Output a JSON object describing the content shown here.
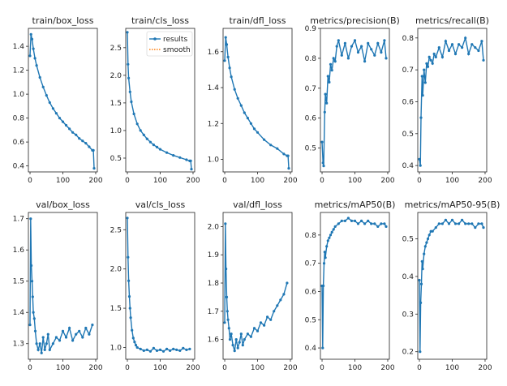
{
  "colors": {
    "results": "#1f77b4",
    "smooth": "#ff7f0e"
  },
  "legend": {
    "results_label": "results",
    "smooth_label": "smooth"
  },
  "chart_data": [
    {
      "type": "line",
      "title": "train/box_loss",
      "xlim": [
        -5,
        205
      ],
      "ylim": [
        0.35,
        1.55
      ],
      "xticks": [
        0,
        100,
        200
      ],
      "yticks": [
        0.4,
        0.6,
        0.8,
        1.0,
        1.2,
        1.4
      ],
      "yticklabels": [
        "0.4",
        "0.6",
        "0.8",
        "1.0",
        "1.2",
        "1.4"
      ],
      "series": [
        {
          "name": "results",
          "x": [
            0,
            3,
            6,
            10,
            15,
            20,
            30,
            40,
            50,
            60,
            70,
            80,
            90,
            100,
            110,
            120,
            130,
            140,
            150,
            160,
            170,
            180,
            190,
            193,
            195
          ],
          "y": [
            1.32,
            1.5,
            1.46,
            1.38,
            1.3,
            1.24,
            1.14,
            1.06,
            0.99,
            0.93,
            0.88,
            0.84,
            0.8,
            0.77,
            0.74,
            0.71,
            0.68,
            0.66,
            0.63,
            0.61,
            0.59,
            0.56,
            0.53,
            0.53,
            0.38
          ]
        }
      ]
    },
    {
      "type": "line",
      "title": "train/cls_loss",
      "xlim": [
        -5,
        205
      ],
      "ylim": [
        0.25,
        2.85
      ],
      "xticks": [
        0,
        100,
        200
      ],
      "yticks": [
        0.5,
        1.0,
        1.5,
        2.0,
        2.5
      ],
      "yticklabels": [
        "0.5",
        "1.0",
        "1.5",
        "2.0",
        "2.5"
      ],
      "series": [
        {
          "name": "results",
          "x": [
            0,
            2,
            4,
            8,
            12,
            20,
            30,
            40,
            50,
            60,
            70,
            80,
            90,
            100,
            120,
            140,
            160,
            180,
            190,
            193,
            195
          ],
          "y": [
            2.78,
            2.2,
            1.95,
            1.7,
            1.52,
            1.3,
            1.12,
            1.0,
            0.92,
            0.85,
            0.79,
            0.74,
            0.7,
            0.66,
            0.6,
            0.55,
            0.51,
            0.47,
            0.45,
            0.45,
            0.3
          ]
        }
      ]
    },
    {
      "type": "line",
      "title": "train/dfl_loss",
      "xlim": [
        -5,
        205
      ],
      "ylim": [
        0.93,
        1.73
      ],
      "xticks": [
        0,
        100,
        200
      ],
      "yticks": [
        1.0,
        1.2,
        1.4,
        1.6
      ],
      "yticklabels": [
        "1.0",
        "1.2",
        "1.4",
        "1.6"
      ],
      "series": [
        {
          "name": "results",
          "x": [
            0,
            3,
            6,
            10,
            15,
            20,
            30,
            40,
            50,
            60,
            70,
            80,
            90,
            100,
            120,
            140,
            160,
            180,
            190,
            193,
            195
          ],
          "y": [
            1.55,
            1.68,
            1.64,
            1.57,
            1.51,
            1.46,
            1.39,
            1.34,
            1.3,
            1.26,
            1.23,
            1.2,
            1.17,
            1.15,
            1.11,
            1.08,
            1.06,
            1.03,
            1.02,
            1.02,
            0.95
          ]
        }
      ]
    },
    {
      "type": "line",
      "title": "metrics/precision(B)",
      "xlim": [
        -5,
        205
      ],
      "ylim": [
        0.42,
        0.9
      ],
      "xticks": [
        0,
        100,
        200
      ],
      "yticks": [
        0.5,
        0.6,
        0.7,
        0.8,
        0.9
      ],
      "yticklabels": [
        "0.5",
        "0.6",
        "0.7",
        "0.8",
        "0.9"
      ],
      "series": [
        {
          "name": "results",
          "x": [
            0,
            3,
            5,
            8,
            10,
            14,
            18,
            22,
            26,
            30,
            35,
            40,
            45,
            50,
            60,
            70,
            80,
            90,
            100,
            110,
            120,
            130,
            140,
            150,
            160,
            170,
            180,
            190,
            195
          ],
          "y": [
            0.52,
            0.45,
            0.44,
            0.62,
            0.68,
            0.65,
            0.74,
            0.72,
            0.78,
            0.76,
            0.8,
            0.79,
            0.84,
            0.86,
            0.81,
            0.85,
            0.8,
            0.84,
            0.86,
            0.82,
            0.84,
            0.79,
            0.85,
            0.83,
            0.81,
            0.85,
            0.82,
            0.86,
            0.8
          ]
        }
      ]
    },
    {
      "type": "line",
      "title": "metrics/recall(B)",
      "xlim": [
        -5,
        205
      ],
      "ylim": [
        0.38,
        0.83
      ],
      "xticks": [
        0,
        100,
        200
      ],
      "yticks": [
        0.4,
        0.5,
        0.6,
        0.7,
        0.8
      ],
      "yticklabels": [
        "0.4",
        "0.5",
        "0.6",
        "0.7",
        "0.8"
      ],
      "series": [
        {
          "name": "results",
          "x": [
            0,
            3,
            5,
            8,
            10,
            14,
            18,
            22,
            26,
            30,
            35,
            40,
            45,
            50,
            60,
            70,
            80,
            90,
            100,
            110,
            120,
            130,
            140,
            150,
            160,
            170,
            180,
            190,
            195
          ],
          "y": [
            0.42,
            0.4,
            0.55,
            0.68,
            0.62,
            0.7,
            0.66,
            0.72,
            0.71,
            0.74,
            0.73,
            0.72,
            0.75,
            0.74,
            0.77,
            0.74,
            0.79,
            0.76,
            0.78,
            0.75,
            0.78,
            0.77,
            0.8,
            0.75,
            0.78,
            0.77,
            0.76,
            0.79,
            0.73
          ]
        }
      ]
    },
    {
      "type": "line",
      "title": "val/box_loss",
      "xlim": [
        -5,
        205
      ],
      "ylim": [
        1.25,
        1.72
      ],
      "xticks": [
        0,
        100,
        200
      ],
      "yticks": [
        1.3,
        1.4,
        1.5,
        1.6,
        1.7
      ],
      "yticklabels": [
        "1.3",
        "1.4",
        "1.5",
        "1.6",
        "1.7"
      ],
      "series": [
        {
          "name": "results",
          "x": [
            0,
            2,
            4,
            6,
            8,
            10,
            13,
            16,
            20,
            25,
            30,
            35,
            40,
            45,
            50,
            55,
            60,
            70,
            80,
            90,
            100,
            110,
            120,
            130,
            140,
            150,
            160,
            170,
            180,
            190
          ],
          "y": [
            1.36,
            1.7,
            1.55,
            1.5,
            1.45,
            1.4,
            1.38,
            1.34,
            1.3,
            1.28,
            1.3,
            1.27,
            1.32,
            1.28,
            1.3,
            1.33,
            1.28,
            1.3,
            1.32,
            1.31,
            1.34,
            1.32,
            1.35,
            1.31,
            1.33,
            1.34,
            1.32,
            1.35,
            1.33,
            1.36
          ]
        }
      ]
    },
    {
      "type": "line",
      "title": "val/cls_loss",
      "xlim": [
        -5,
        205
      ],
      "ylim": [
        0.85,
        2.72
      ],
      "xticks": [
        0,
        100,
        200
      ],
      "yticks": [
        1.0,
        1.5,
        2.0,
        2.5
      ],
      "yticklabels": [
        "1.0",
        "1.5",
        "2.0",
        "2.5"
      ],
      "series": [
        {
          "name": "results",
          "x": [
            0,
            2,
            4,
            6,
            8,
            10,
            14,
            18,
            22,
            26,
            30,
            40,
            50,
            60,
            70,
            80,
            90,
            100,
            110,
            120,
            130,
            140,
            150,
            160,
            170,
            180,
            190
          ],
          "y": [
            2.65,
            2.15,
            1.85,
            1.65,
            1.5,
            1.38,
            1.22,
            1.12,
            1.07,
            1.03,
            1.0,
            0.98,
            0.96,
            0.97,
            0.95,
            0.99,
            0.96,
            0.97,
            0.95,
            0.98,
            0.96,
            0.98,
            0.97,
            0.96,
            0.99,
            0.97,
            0.98
          ]
        }
      ]
    },
    {
      "type": "line",
      "title": "val/dfl_loss",
      "xlim": [
        -5,
        205
      ],
      "ylim": [
        1.53,
        2.05
      ],
      "xticks": [
        0,
        100,
        200
      ],
      "yticks": [
        1.6,
        1.7,
        1.8,
        1.9,
        2.0
      ],
      "yticklabels": [
        "1.6",
        "1.7",
        "1.8",
        "1.9",
        "2.0"
      ],
      "series": [
        {
          "name": "results",
          "x": [
            0,
            2,
            4,
            6,
            8,
            10,
            13,
            16,
            20,
            25,
            30,
            35,
            40,
            45,
            50,
            55,
            60,
            70,
            80,
            90,
            100,
            110,
            120,
            130,
            140,
            150,
            160,
            170,
            180,
            190
          ],
          "y": [
            1.66,
            2.01,
            1.85,
            1.75,
            1.7,
            1.67,
            1.64,
            1.6,
            1.62,
            1.58,
            1.56,
            1.6,
            1.57,
            1.59,
            1.62,
            1.58,
            1.6,
            1.62,
            1.61,
            1.64,
            1.63,
            1.66,
            1.65,
            1.68,
            1.67,
            1.7,
            1.72,
            1.74,
            1.76,
            1.8
          ]
        }
      ]
    },
    {
      "type": "line",
      "title": "metrics/mAP50(B)",
      "xlim": [
        -5,
        205
      ],
      "ylim": [
        0.36,
        0.88
      ],
      "xticks": [
        0,
        100,
        200
      ],
      "yticks": [
        0.4,
        0.5,
        0.6,
        0.7,
        0.8
      ],
      "yticklabels": [
        "0.4",
        "0.5",
        "0.6",
        "0.7",
        "0.8"
      ],
      "series": [
        {
          "name": "results",
          "x": [
            0,
            2,
            4,
            6,
            8,
            10,
            14,
            18,
            22,
            26,
            30,
            35,
            40,
            50,
            60,
            70,
            80,
            90,
            100,
            110,
            120,
            130,
            140,
            150,
            160,
            170,
            180,
            190,
            195
          ],
          "y": [
            0.62,
            0.4,
            0.62,
            0.7,
            0.74,
            0.72,
            0.76,
            0.78,
            0.79,
            0.8,
            0.81,
            0.82,
            0.83,
            0.84,
            0.85,
            0.85,
            0.86,
            0.85,
            0.85,
            0.84,
            0.85,
            0.84,
            0.85,
            0.84,
            0.84,
            0.83,
            0.84,
            0.84,
            0.83
          ]
        }
      ]
    },
    {
      "type": "line",
      "title": "metrics/mAP50-95(B)",
      "xlim": [
        -5,
        205
      ],
      "ylim": [
        0.18,
        0.57
      ],
      "xticks": [
        0,
        100,
        200
      ],
      "yticks": [
        0.2,
        0.3,
        0.4,
        0.5
      ],
      "yticklabels": [
        "0.2",
        "0.3",
        "0.4",
        "0.5"
      ],
      "series": [
        {
          "name": "results",
          "x": [
            0,
            2,
            4,
            6,
            8,
            10,
            14,
            18,
            22,
            26,
            30,
            35,
            40,
            50,
            60,
            70,
            80,
            90,
            100,
            110,
            120,
            130,
            140,
            150,
            160,
            170,
            180,
            190,
            195
          ],
          "y": [
            0.39,
            0.2,
            0.33,
            0.38,
            0.44,
            0.42,
            0.46,
            0.48,
            0.49,
            0.5,
            0.51,
            0.52,
            0.52,
            0.53,
            0.54,
            0.54,
            0.55,
            0.54,
            0.55,
            0.54,
            0.54,
            0.55,
            0.54,
            0.54,
            0.54,
            0.53,
            0.54,
            0.54,
            0.53
          ]
        }
      ]
    }
  ]
}
